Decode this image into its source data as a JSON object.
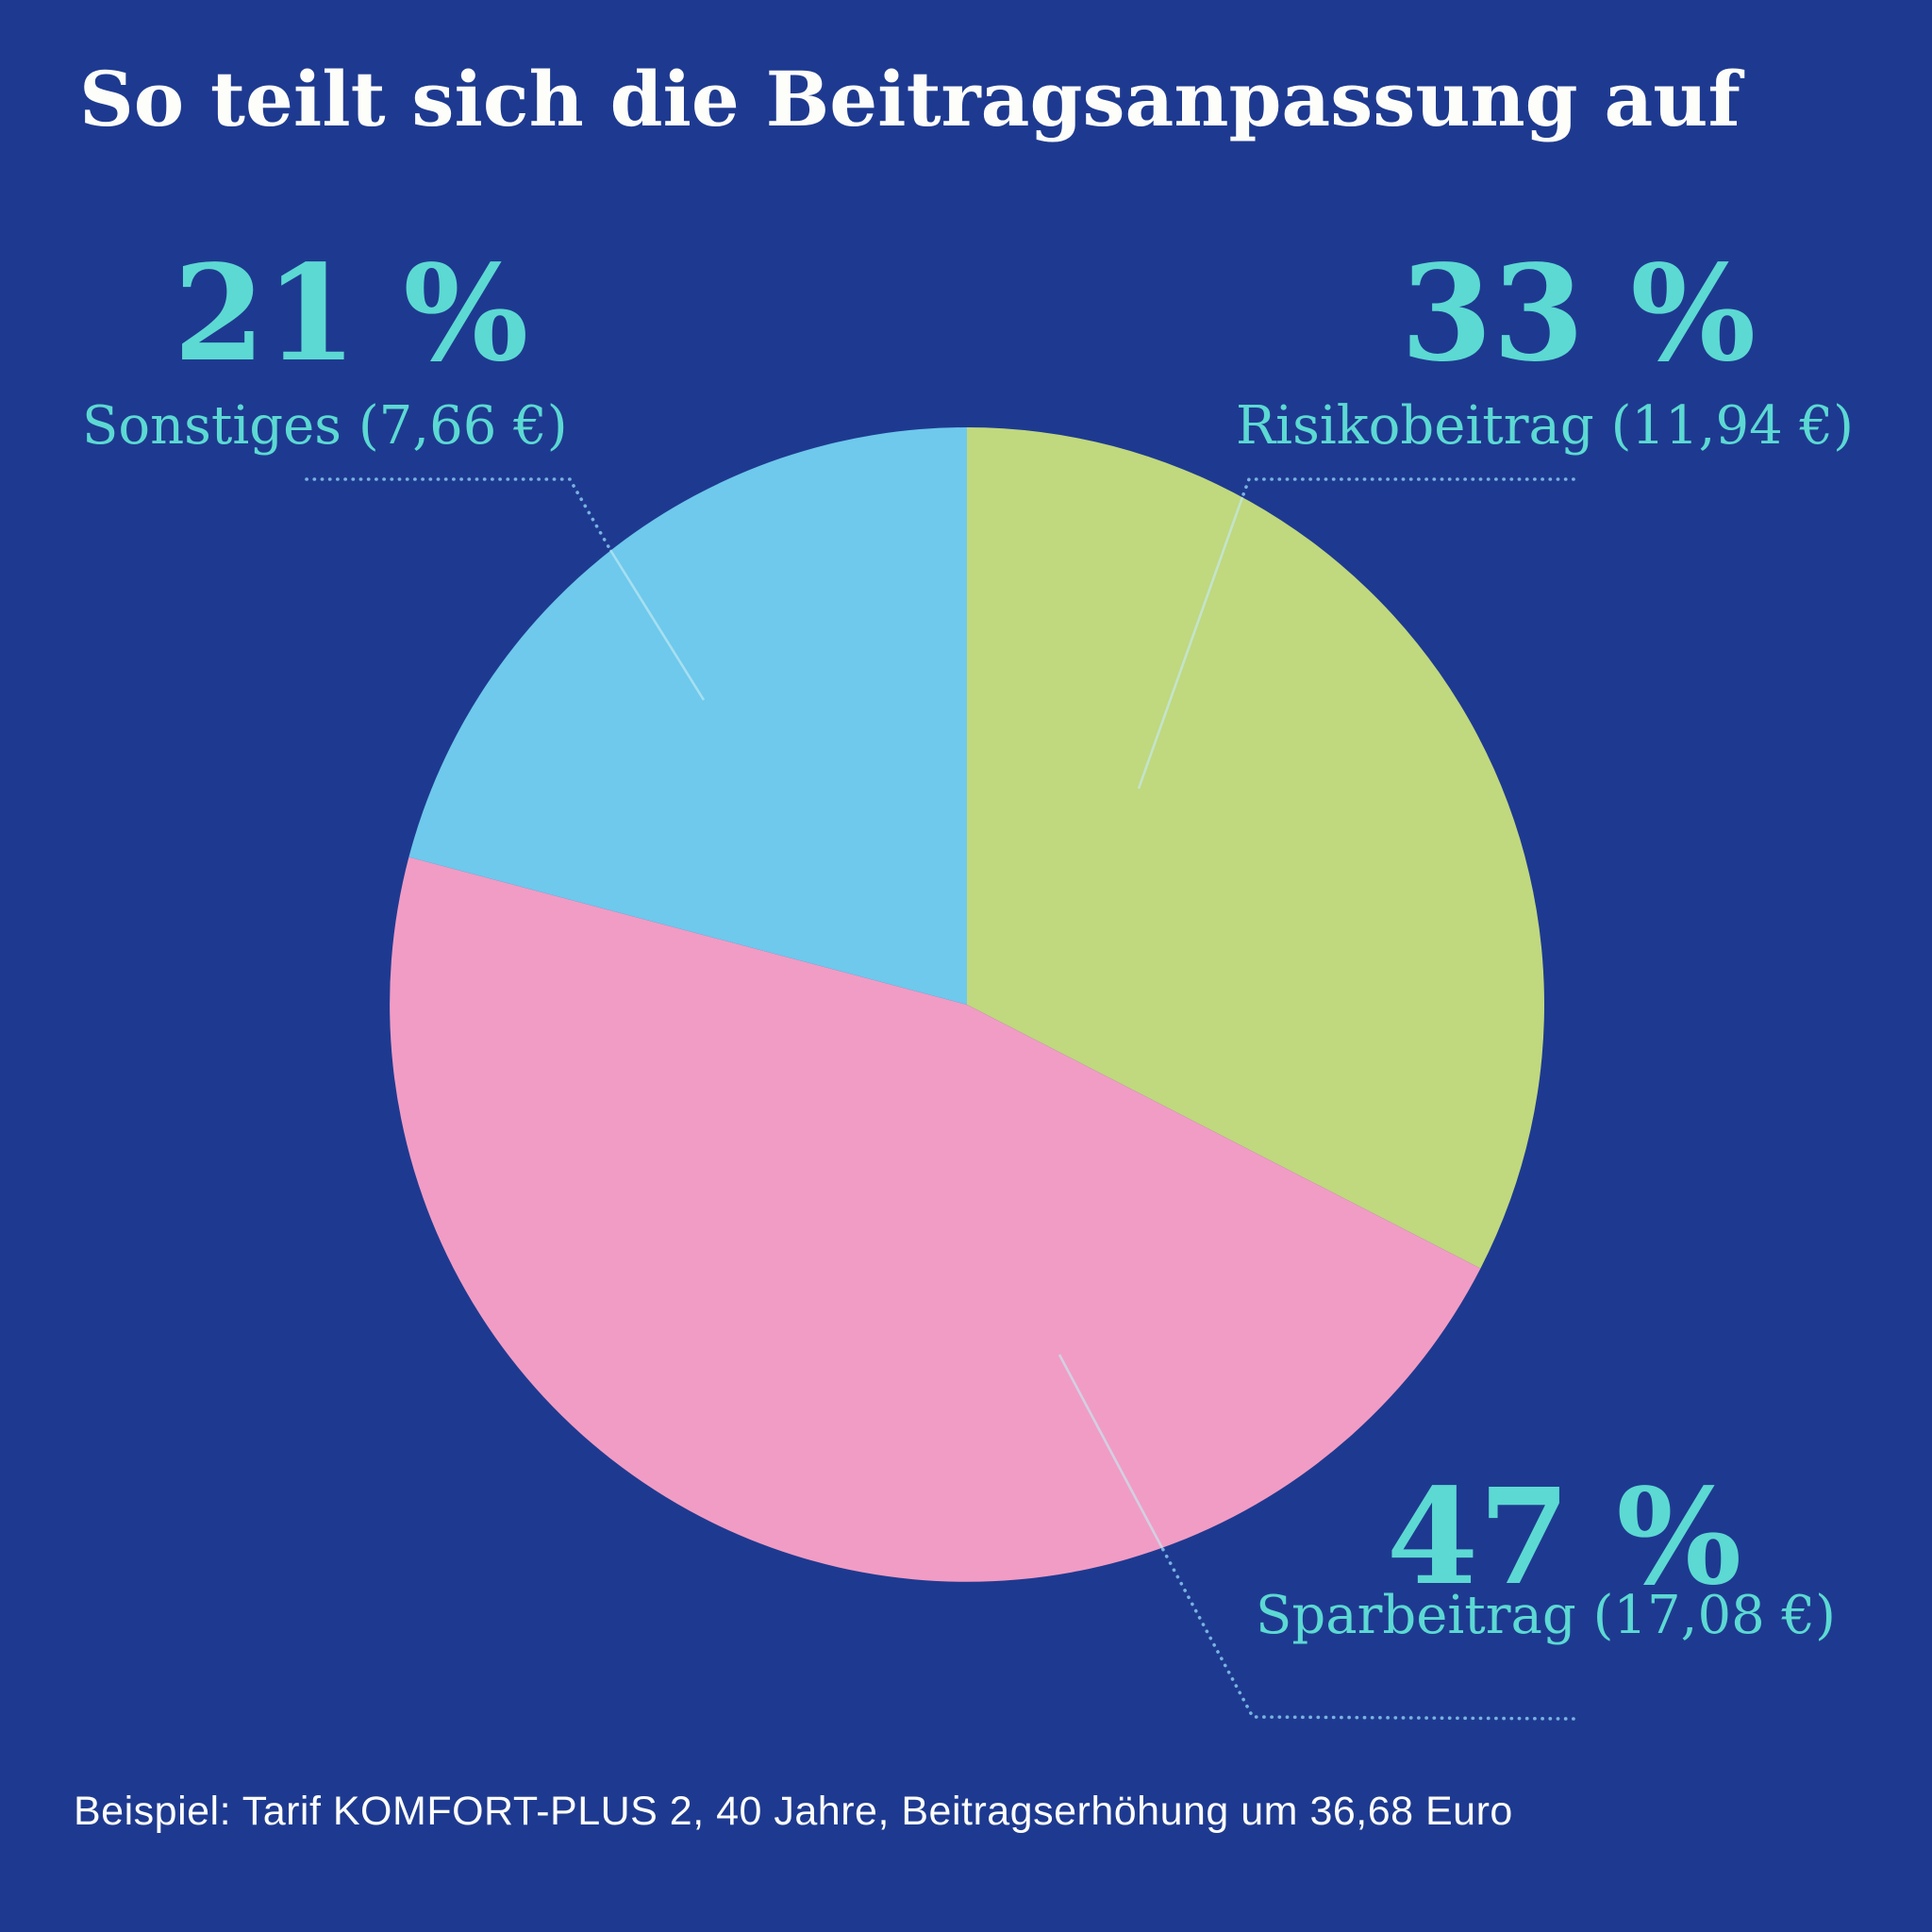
{
  "title": "So teilt sich die Beitragsanpassung auf",
  "footer": "Beispiel: Tarif KOMFORT-PLUS 2, 40 Jahre, Beitragserhöhung um 36,68 Euro",
  "colors": {
    "background": "#1e3a90",
    "accent": "#5cd9d3",
    "title_text": "#fdfdfa",
    "callout_line": "#79b2e2",
    "callout_line_inner": "#c4ebf2"
  },
  "chart_data": {
    "type": "pie",
    "title": "So teilt sich die Beitragsanpassung auf",
    "direction": "clockwise",
    "start_angle_deg": 0,
    "legend_position": "callouts",
    "total_eur": 36.68,
    "slices": [
      {
        "id": "risikobeitrag",
        "label": "Risikobeitrag",
        "percent": 33,
        "percent_label": "33 %",
        "value_eur": 11.94,
        "value_label": "Risikobeitrag (11,94 €)",
        "color": "#c0d87e"
      },
      {
        "id": "sparbeitrag",
        "label": "Sparbeitrag",
        "percent": 47,
        "percent_label": "47 %",
        "value_eur": 17.08,
        "value_label": "Sparbeitrag (17,08 €)",
        "color": "#f19cc5"
      },
      {
        "id": "sonstiges",
        "label": "Sonstiges",
        "percent": 21,
        "percent_label": "21 %",
        "value_eur": 7.66,
        "value_label": "Sonstiges (7,66 €)",
        "color": "#6ec9ec"
      }
    ]
  }
}
